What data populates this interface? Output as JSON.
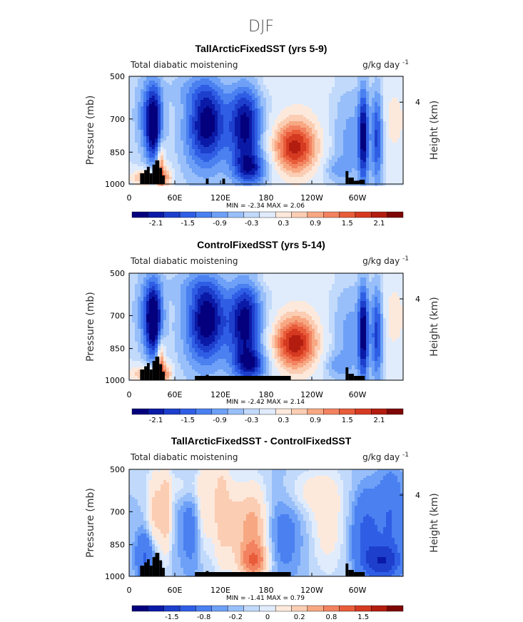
{
  "page_title": "DJF",
  "colors": {
    "land": "#000000",
    "frame": "#000000",
    "palette": [
      "#04007d",
      "#0a1aa6",
      "#1d3fcc",
      "#2f5ee5",
      "#4a80f0",
      "#6da0f6",
      "#98bff9",
      "#c1d9fb",
      "#e0ecfc",
      "#fde9dc",
      "#fbcdb3",
      "#f7a882",
      "#f28260",
      "#e85c3a",
      "#d53a21",
      "#b21d10",
      "#7e0606"
    ]
  },
  "chart_data": [
    {
      "type": "heatmap",
      "title": "TallArcticFixedSST (yrs 5-9)",
      "variable_label": "Total diabatic moistening",
      "units": "g/kg day",
      "units_exp": "-1",
      "ylabel": "Pressure (mb)",
      "ylabel_right": "Height (km)",
      "yticks": [
        "500",
        "700",
        "850",
        "1000"
      ],
      "yticks_right": [
        "4"
      ],
      "xticks": [
        "0",
        "60E",
        "120E",
        "180",
        "120W",
        "60W"
      ],
      "minmax": "MIN =   -2.34   MAX =   2.06",
      "min": -2.34,
      "max": 2.06,
      "colorbar_labels": [
        "-2.1",
        "-1.5",
        "-0.9",
        "-0.3",
        "0.3",
        "0.9",
        "1.5",
        "2.1"
      ]
    },
    {
      "type": "heatmap",
      "title": "ControlFixedSST (yrs 5-14)",
      "variable_label": "Total diabatic moistening",
      "units": "g/kg day",
      "units_exp": "-1",
      "ylabel": "Pressure (mb)",
      "ylabel_right": "Height (km)",
      "yticks": [
        "500",
        "700",
        "850",
        "1000"
      ],
      "yticks_right": [
        "4"
      ],
      "xticks": [
        "0",
        "60E",
        "120E",
        "180",
        "120W",
        "60W"
      ],
      "minmax": "MIN =   -2.42   MAX =   2.14",
      "min": -2.42,
      "max": 2.14,
      "colorbar_labels": [
        "-2.1",
        "-1.5",
        "-0.9",
        "-0.3",
        "0.3",
        "0.9",
        "1.5",
        "2.1"
      ]
    },
    {
      "type": "heatmap",
      "title": "TallArcticFixedSST - ControlFixedSST",
      "variable_label": "Total diabatic moistening",
      "units": "g/kg day",
      "units_exp": "-1",
      "ylabel": "Pressure (mb)",
      "ylabel_right": "Height (km)",
      "yticks": [
        "500",
        "700",
        "850",
        "1000"
      ],
      "yticks_right": [
        "4"
      ],
      "xticks": [
        "0",
        "60E",
        "120E",
        "180",
        "120W",
        "60W"
      ],
      "minmax": "MIN =   -1.41   MAX =   0.79",
      "min": -1.41,
      "max": 0.79,
      "colorbar_labels": [
        "-1.5",
        "-0.8",
        "-0.2",
        "0",
        "0.2",
        "0.8",
        "1.5"
      ]
    }
  ]
}
